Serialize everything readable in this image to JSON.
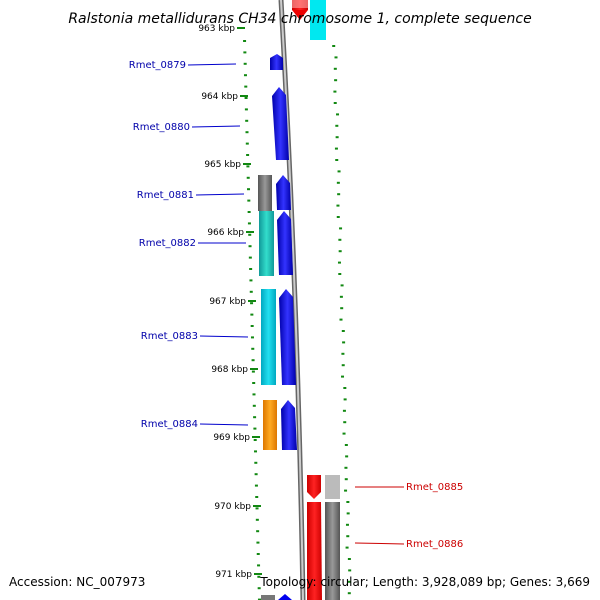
{
  "title": "Ralstonia metallidurans CH34 chromosome 1, complete sequence",
  "footer": {
    "accession": "Accession: NC_007973",
    "topology": "Topology: circular; Length: 3,928,089 bp; Genes: 3,669"
  },
  "ticks": [
    {
      "label": "963 kbp",
      "faded": true
    },
    {
      "label": "964 kbp"
    },
    {
      "label": "965 kbp"
    },
    {
      "label": "966 kbp"
    },
    {
      "label": "967 kbp"
    },
    {
      "label": "968 kbp"
    },
    {
      "label": "969 kbp"
    },
    {
      "label": "970 kbp"
    },
    {
      "label": "971 kbp"
    }
  ],
  "genes_left": [
    "Rmet_0879",
    "Rmet_0880",
    "Rmet_0881",
    "Rmet_0882",
    "Rmet_0883",
    "Rmet_0884"
  ],
  "genes_right": [
    "Rmet_0885",
    "Rmet_0886"
  ],
  "colors": {
    "forward_gene": "#0000ee",
    "reverse_gene": "#ff0000",
    "backbone": "#888888",
    "dots": "#118811",
    "cyan": "#00e0f0",
    "light_blue": "#22ccee",
    "teal": "#22ccbb",
    "orange": "#ff9900",
    "grey": "#777777",
    "light_grey": "#bbbbbb",
    "left_label": "#0000aa",
    "right_label": "#cc0000"
  }
}
